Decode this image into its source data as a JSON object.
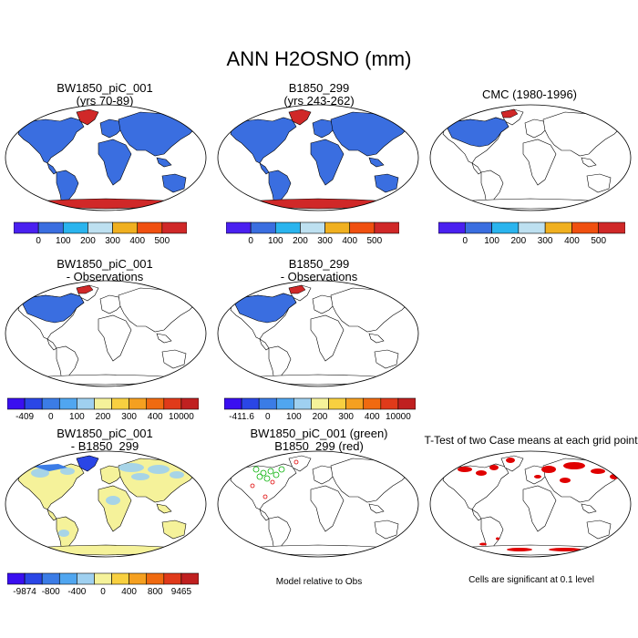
{
  "title": "ANN H2OSNO (mm)",
  "panels": [
    {
      "title1": "BW1850_piC_001",
      "title2": "(yrs 70-89)",
      "scheme": "full"
    },
    {
      "title1": "B1850_299",
      "title2": "(yrs 243-262)",
      "scheme": "full"
    },
    {
      "title1": "CMC (1980-1996)",
      "title2": "",
      "scheme": "obs"
    },
    {
      "title1": "BW1850_piC_001",
      "title2": "- Observations",
      "scheme": "obs"
    },
    {
      "title1": "B1850_299",
      "title2": "- Observations",
      "scheme": "obs"
    },
    {
      "title1": "BW1850_piC_001",
      "title2": "- B1850_299",
      "scheme": "diff"
    },
    {
      "title1": "BW1850_piC_001 (green)",
      "title2": "B1850_299 (red)",
      "scheme": "contour"
    },
    {
      "title1": "T-Test of two Case means at each grid point",
      "title2": "",
      "scheme": "ttest"
    }
  ],
  "colorbars": {
    "abs": {
      "colors": [
        "#4a20f0",
        "#3a6ee0",
        "#2ab4ee",
        "#bde0f0",
        "#f0b020",
        "#f05010",
        "#d02828"
      ],
      "labels": [
        "0",
        "100",
        "200",
        "300",
        "400",
        "500"
      ]
    },
    "diff1": {
      "colors": [
        "#3a0ff0",
        "#2a46e6",
        "#3b7ce6",
        "#50a6f0",
        "#9fd0f0",
        "#f5f29a",
        "#f8d040",
        "#f5a020",
        "#f06a10",
        "#e03a1a",
        "#c02020"
      ],
      "labels": [
        "-409",
        "0",
        "100",
        "200",
        "300",
        "400",
        "10000"
      ]
    },
    "diff2": {
      "colors": [
        "#3a0ff0",
        "#2a46e6",
        "#3b7ce6",
        "#50a6f0",
        "#9fd0f0",
        "#f5f29a",
        "#f8d040",
        "#f5a020",
        "#f06a10",
        "#e03a1a",
        "#c02020"
      ],
      "labels": [
        "-411.6",
        "0",
        "100",
        "200",
        "300",
        "400",
        "10000"
      ]
    },
    "diff3": {
      "colors": [
        "#3a0ff0",
        "#2a46e6",
        "#3b7ce6",
        "#50a6f0",
        "#9fd0f0",
        "#f5f29a",
        "#f8d040",
        "#f5a020",
        "#f06a10",
        "#e03a1a",
        "#c02020"
      ],
      "labels": [
        "-9874",
        "-800",
        "-400",
        "0",
        "400",
        "800",
        "9465"
      ]
    }
  },
  "notes": {
    "model_rel": "Model relative to Obs",
    "cells_sig": "Cells are significant at 0.1 level"
  },
  "colors": {
    "snow_blue": "#3a6ee0",
    "antarctic_red": "#d02828",
    "diff_yellow": "#f5f29a",
    "diff_lightblue": "#9fd0f0",
    "contour_green": "#00b000",
    "contour_red": "#e00000",
    "sig_red": "#e00000"
  }
}
